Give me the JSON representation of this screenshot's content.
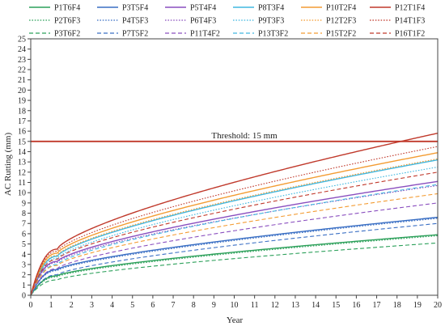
{
  "chart_data": {
    "type": "line",
    "title": "",
    "xlabel": "Year",
    "ylabel": "AC Rutting (mm)",
    "xlim": [
      0,
      20
    ],
    "ylim": [
      0,
      25
    ],
    "x_ticks": [
      0,
      1,
      2,
      3,
      4,
      5,
      6,
      7,
      8,
      9,
      10,
      11,
      12,
      13,
      14,
      15,
      16,
      17,
      18,
      19,
      20
    ],
    "y_ticks": [
      0,
      1,
      2,
      3,
      4,
      5,
      6,
      7,
      8,
      9,
      10,
      11,
      12,
      13,
      14,
      15,
      16,
      17,
      18,
      19,
      20,
      21,
      22,
      23,
      24,
      25
    ],
    "grid": false,
    "legend_position": "top",
    "threshold": {
      "value": 15,
      "label": "Threshold: 15 mm",
      "color": "#c0392b"
    },
    "curve_shape": "rapid initial rise to approx. year 1.3, then gradual power-law growth",
    "series": [
      {
        "name": "P1T6F4",
        "color": "#2ca05a",
        "dash": "solid",
        "values": {
          "1.3": 1.9,
          "20": 5.9
        }
      },
      {
        "name": "P3T5F4",
        "color": "#3a6fc4",
        "dash": "solid",
        "values": {
          "1.3": 2.5,
          "20": 7.6
        }
      },
      {
        "name": "P5T4F4",
        "color": "#8a4fbf",
        "dash": "solid",
        "values": {
          "1.3": 3.3,
          "20": 11.1
        }
      },
      {
        "name": "P8T3F4",
        "color": "#40b8e0",
        "dash": "solid",
        "values": {
          "1.3": 3.8,
          "20": 13.2
        }
      },
      {
        "name": "P10T2F4",
        "color": "#f39c33",
        "dash": "solid",
        "values": {
          "1.3": 4.1,
          "20": 13.9
        }
      },
      {
        "name": "P12T1F4",
        "color": "#c0392b",
        "dash": "solid",
        "values": {
          "1.3": 4.5,
          "20": 15.8
        }
      },
      {
        "name": "P2T6F3",
        "color": "#2ca05a",
        "dash": "dotted",
        "values": {
          "1.3": 1.8,
          "20": 5.8
        }
      },
      {
        "name": "P4T5F3",
        "color": "#3a6fc4",
        "dash": "dotted",
        "values": {
          "1.3": 2.4,
          "20": 7.5
        }
      },
      {
        "name": "P6T4F3",
        "color": "#8a4fbf",
        "dash": "dotted",
        "values": {
          "1.3": 3.2,
          "20": 10.7
        }
      },
      {
        "name": "P9T3F3",
        "color": "#40b8e0",
        "dash": "dotted",
        "values": {
          "1.3": 3.6,
          "20": 12.5
        }
      },
      {
        "name": "P12T2F3",
        "color": "#f39c33",
        "dash": "dotted",
        "values": {
          "1.3": 3.9,
          "20": 13.3
        }
      },
      {
        "name": "P14T1F3",
        "color": "#c0392b",
        "dash": "dotted",
        "values": {
          "1.3": 4.3,
          "20": 14.5
        }
      },
      {
        "name": "P3T6F2",
        "color": "#2ca05a",
        "dash": "dashed",
        "values": {
          "1.3": 1.5,
          "20": 5.1
        }
      },
      {
        "name": "P7T5F2",
        "color": "#3a6fc4",
        "dash": "dashed",
        "values": {
          "1.3": 2.0,
          "20": 7.0
        }
      },
      {
        "name": "P11T4F2",
        "color": "#8a4fbf",
        "dash": "dashed",
        "values": {
          "1.3": 2.6,
          "20": 9.0
        }
      },
      {
        "name": "P13T3F2",
        "color": "#40b8e0",
        "dash": "dashed",
        "values": {
          "1.3": 3.0,
          "20": 10.8
        }
      },
      {
        "name": "P15T2F2",
        "color": "#f39c33",
        "dash": "dashed",
        "values": {
          "1.3": 2.9,
          "20": 9.9
        }
      },
      {
        "name": "P16T1F2",
        "color": "#c0392b",
        "dash": "dashed",
        "values": {
          "1.3": 3.5,
          "20": 12.0
        }
      }
    ]
  }
}
